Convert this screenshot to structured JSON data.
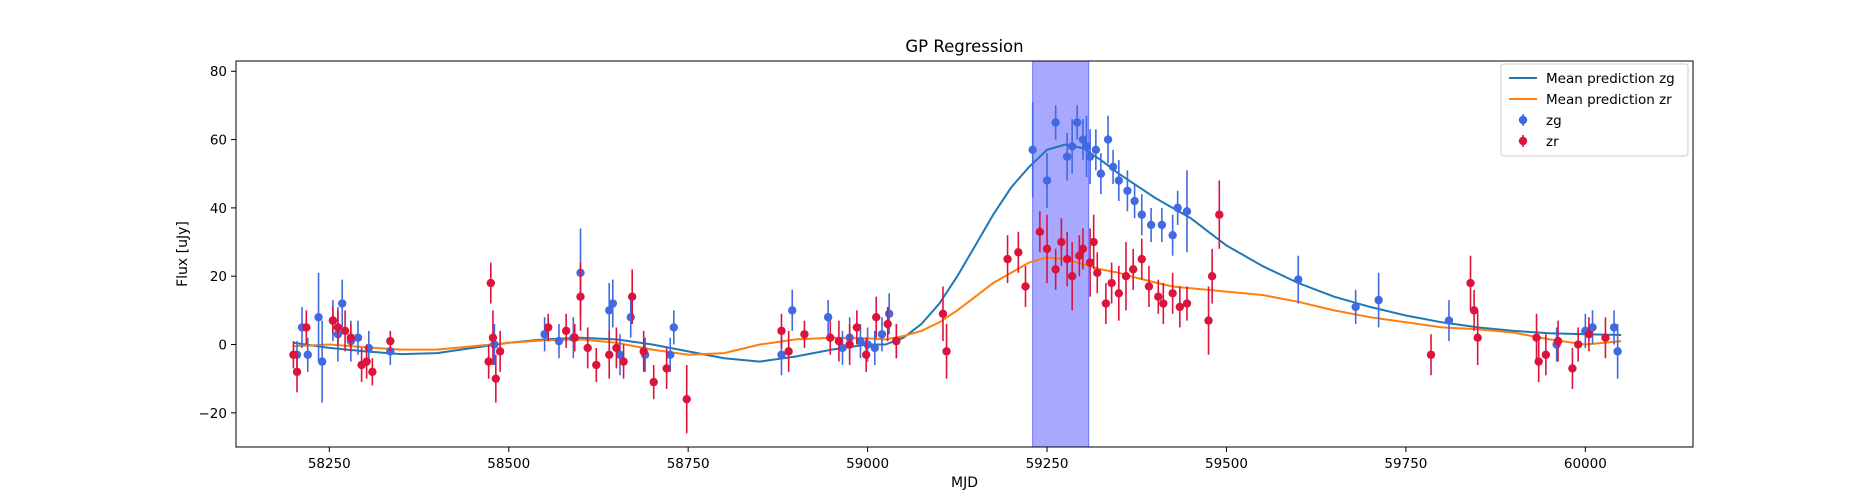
{
  "chart_data": {
    "type": "scatter",
    "title": "GP Regression",
    "xlabel": "MJD",
    "ylabel": "Flux [uJy]",
    "xlim": [
      58120,
      60150
    ],
    "ylim": [
      -30,
      83
    ],
    "xticks": [
      58250,
      58500,
      58750,
      59000,
      59250,
      59500,
      59750,
      60000
    ],
    "yticks": [
      -20,
      0,
      20,
      40,
      60,
      80
    ],
    "legend_position": "top-right",
    "highlight_band": {
      "x_start": 59230,
      "x_end": 59308,
      "color": "#a8a8ff"
    },
    "series": [
      {
        "name": "Mean prediction zg",
        "kind": "line",
        "color": "#1f77b4",
        "x": [
          58200,
          58250,
          58300,
          58350,
          58400,
          58450,
          58500,
          58550,
          58600,
          58650,
          58700,
          58750,
          58800,
          58850,
          58900,
          58950,
          59000,
          59025,
          59050,
          59075,
          59100,
          59125,
          59150,
          59175,
          59200,
          59225,
          59250,
          59275,
          59300,
          59325,
          59350,
          59375,
          59400,
          59425,
          59450,
          59475,
          59500,
          59550,
          59600,
          59650,
          59700,
          59750,
          59800,
          59850,
          59900,
          59950,
          60000,
          60050
        ],
        "y": [
          0.5,
          -1,
          -2,
          -2.8,
          -2.5,
          -1,
          0.5,
          1.5,
          2,
          1.5,
          0,
          -2,
          -4,
          -5,
          -3.5,
          -1.5,
          0,
          0,
          2,
          6,
          12,
          20,
          29,
          38,
          46,
          52,
          57,
          58.5,
          57.5,
          54,
          50,
          46.5,
          43,
          40,
          37,
          33,
          29,
          23,
          18,
          14,
          11,
          8.5,
          6.5,
          5,
          4,
          3.3,
          3,
          2.8
        ]
      },
      {
        "name": "Mean prediction zr",
        "kind": "line",
        "color": "#ff7f0e",
        "x": [
          58200,
          58250,
          58300,
          58350,
          58400,
          58450,
          58500,
          58550,
          58600,
          58650,
          58700,
          58750,
          58800,
          58850,
          58900,
          58950,
          59000,
          59025,
          59050,
          59075,
          59100,
          59125,
          59150,
          59175,
          59200,
          59225,
          59250,
          59275,
          59300,
          59325,
          59350,
          59375,
          59400,
          59425,
          59450,
          59475,
          59500,
          59550,
          59600,
          59650,
          59700,
          59750,
          59800,
          59850,
          59900,
          59950,
          60000,
          60050
        ],
        "y": [
          -0.5,
          0,
          -0.8,
          -1.5,
          -1.5,
          -0.5,
          0.5,
          1.2,
          1.5,
          0.5,
          -1.5,
          -3,
          -2.5,
          0,
          1.5,
          2,
          1.8,
          1.5,
          2.5,
          4,
          6.5,
          10,
          14,
          18,
          21,
          24,
          25.5,
          25,
          23.5,
          22,
          21,
          19.5,
          18.2,
          17,
          16.5,
          16,
          15.5,
          14.5,
          12.5,
          10,
          8,
          6.5,
          5,
          4.5,
          3.5,
          1.5,
          0,
          1
        ]
      },
      {
        "name": "zg",
        "kind": "errorbar",
        "color": "#4169e1",
        "x": [
          58205,
          58212,
          58220,
          58235,
          58240,
          58255,
          58262,
          58268,
          58280,
          58290,
          58305,
          58335,
          58480,
          58550,
          58570,
          58590,
          58600,
          58640,
          58645,
          58655,
          58670,
          58690,
          58725,
          58730,
          58880,
          58895,
          58945,
          58965,
          58975,
          58990,
          59000,
          59010,
          59020,
          59030,
          59040,
          59230,
          59250,
          59262,
          59278,
          59285,
          59292,
          59300,
          59305,
          59310,
          59318,
          59325,
          59335,
          59342,
          59350,
          59362,
          59372,
          59382,
          59395,
          59410,
          59425,
          59432,
          59445,
          59600,
          59680,
          59712,
          59810,
          59960,
          60000,
          60010,
          60040,
          60045
        ],
        "y": [
          -3,
          5,
          -3,
          8,
          -5,
          7,
          3,
          12,
          1,
          2,
          -1,
          -2,
          0,
          3,
          1,
          2,
          21,
          10,
          12,
          -3,
          8,
          -3,
          -3,
          5,
          -3,
          10,
          8,
          -1,
          2,
          1,
          0,
          -1,
          3,
          9,
          1,
          57,
          48,
          65,
          55,
          58,
          65,
          60,
          58,
          55,
          57,
          50,
          60,
          52,
          48,
          45,
          42,
          38,
          35,
          35,
          32,
          40,
          39,
          19,
          11,
          13,
          7,
          0,
          4,
          5,
          5,
          -2
        ],
        "err": [
          4,
          6,
          5,
          13,
          12,
          6,
          8,
          7,
          6,
          5,
          5,
          4,
          6,
          5,
          5,
          6,
          13,
          8,
          7,
          6,
          6,
          5,
          5,
          5,
          6,
          6,
          5,
          5,
          6,
          5,
          5,
          5,
          5,
          6,
          5,
          14,
          8,
          5,
          7,
          8,
          5,
          6,
          9,
          8,
          6,
          6,
          7,
          5,
          6,
          6,
          5,
          6,
          5,
          5,
          6,
          5,
          12,
          7,
          5,
          8,
          6,
          5,
          5,
          5,
          5,
          8
        ]
      },
      {
        "name": "zr",
        "kind": "errorbar",
        "color": "#dc143c",
        "x": [
          58200,
          58205,
          58218,
          58255,
          58262,
          58272,
          58280,
          58295,
          58302,
          58310,
          58335,
          58472,
          58475,
          58478,
          58482,
          58488,
          58555,
          58580,
          58592,
          58600,
          58610,
          58622,
          58640,
          58650,
          58660,
          58672,
          58688,
          58702,
          58720,
          58748,
          58880,
          58890,
          58912,
          58948,
          58960,
          58975,
          58985,
          58998,
          59012,
          59028,
          59040,
          59105,
          59110,
          59195,
          59210,
          59220,
          59240,
          59250,
          59262,
          59270,
          59278,
          59285,
          59295,
          59300,
          59310,
          59315,
          59320,
          59332,
          59340,
          59350,
          59360,
          59370,
          59382,
          59392,
          59405,
          59412,
          59425,
          59435,
          59445,
          59475,
          59480,
          59490,
          59785,
          59840,
          59845,
          59850,
          59932,
          59935,
          59945,
          59962,
          59982,
          59990,
          60005,
          60028
        ],
        "y": [
          -3,
          -8,
          5,
          7,
          5,
          4,
          2,
          -6,
          -5,
          -8,
          1,
          -5,
          18,
          2,
          -10,
          -2,
          5,
          4,
          2,
          14,
          -1,
          -6,
          -3,
          -1,
          -5,
          14,
          -2,
          -11,
          -7,
          -16,
          4,
          -2,
          3,
          2,
          1,
          0,
          5,
          -3,
          8,
          6,
          1,
          9,
          -2,
          25,
          27,
          17,
          33,
          28,
          22,
          30,
          25,
          20,
          26,
          28,
          24,
          30,
          21,
          12,
          18,
          15,
          20,
          22,
          25,
          17,
          14,
          12,
          15,
          11,
          12,
          7,
          20,
          38,
          -3,
          18,
          10,
          2,
          2,
          -5,
          -3,
          1,
          -7,
          0,
          3,
          2
        ],
        "err": [
          4,
          6,
          5,
          4,
          5,
          6,
          4,
          5,
          5,
          4,
          3,
          5,
          6,
          8,
          7,
          6,
          4,
          5,
          4,
          10,
          6,
          5,
          7,
          6,
          5,
          8,
          6,
          5,
          6,
          10,
          5,
          6,
          4,
          5,
          6,
          6,
          5,
          5,
          6,
          5,
          5,
          8,
          8,
          7,
          6,
          6,
          6,
          10,
          6,
          7,
          8,
          10,
          6,
          6,
          10,
          8,
          6,
          6,
          6,
          8,
          10,
          6,
          6,
          6,
          5,
          6,
          6,
          6,
          5,
          10,
          8,
          10,
          6,
          8,
          6,
          8,
          7,
          6,
          6,
          6,
          6,
          5,
          5,
          6
        ]
      }
    ]
  }
}
